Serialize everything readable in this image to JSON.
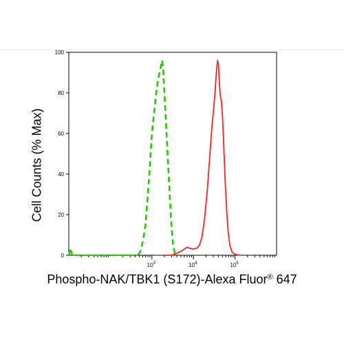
{
  "chart_data": {
    "type": "line",
    "ylabel": "Cell Counts (% Max)",
    "xlabel": {
      "main": "Phospho-NAK/TBK1 (S172)-Alexa Fluor",
      "superscript": "®",
      "suffix": " 647"
    },
    "x_scale": "log",
    "xlim": [
      10,
      1000000
    ],
    "ylim": [
      0,
      100
    ],
    "x_ticks": [
      {
        "base": "10",
        "exp": "3",
        "value": 1000
      },
      {
        "base": "10",
        "exp": "4",
        "value": 10000
      },
      {
        "base": "10",
        "exp": "5",
        "value": 100000
      }
    ],
    "y_ticks": [
      {
        "label": "0",
        "value": 0
      },
      {
        "label": "20",
        "value": 20
      },
      {
        "label": "40",
        "value": 40
      },
      {
        "label": "60",
        "value": 60
      },
      {
        "label": "80",
        "value": 80
      },
      {
        "label": "100",
        "value": 100
      }
    ],
    "series": [
      {
        "style": "dashed",
        "color": "#22cc00",
        "points": [
          [
            10,
            0
          ],
          [
            11,
            3.5
          ],
          [
            12,
            0
          ],
          [
            200,
            0
          ],
          [
            420,
            0
          ],
          [
            500,
            1
          ],
          [
            550,
            3
          ],
          [
            620,
            8
          ],
          [
            700,
            15
          ],
          [
            800,
            30
          ],
          [
            900,
            45
          ],
          [
            1000,
            60
          ],
          [
            1150,
            72
          ],
          [
            1300,
            82
          ],
          [
            1450,
            88
          ],
          [
            1600,
            92
          ],
          [
            1750,
            96
          ],
          [
            1850,
            93
          ],
          [
            2000,
            80
          ],
          [
            2200,
            64
          ],
          [
            2400,
            48
          ],
          [
            2650,
            32
          ],
          [
            2900,
            17
          ],
          [
            3200,
            6
          ],
          [
            3550,
            1
          ],
          [
            4000,
            0
          ]
        ]
      },
      {
        "style": "solid",
        "color": "#ff2222",
        "points": [
          [
            2000,
            0
          ],
          [
            3000,
            0
          ],
          [
            4000,
            1
          ],
          [
            5000,
            2
          ],
          [
            6000,
            3
          ],
          [
            7000,
            4
          ],
          [
            8000,
            3.5
          ],
          [
            10000,
            3
          ],
          [
            12000,
            3.5
          ],
          [
            14000,
            5
          ],
          [
            16000,
            9
          ],
          [
            18500,
            18
          ],
          [
            21500,
            32
          ],
          [
            24500,
            48
          ],
          [
            27500,
            62
          ],
          [
            30500,
            72
          ],
          [
            33000,
            80
          ],
          [
            35500,
            90
          ],
          [
            38000,
            96
          ],
          [
            40000,
            94
          ],
          [
            42000,
            85
          ],
          [
            44000,
            79
          ],
          [
            47000,
            76
          ],
          [
            50000,
            68
          ],
          [
            54000,
            52
          ],
          [
            58000,
            36
          ],
          [
            63000,
            22
          ],
          [
            68000,
            12
          ],
          [
            75000,
            5
          ],
          [
            85000,
            1.5
          ],
          [
            100000,
            0.5
          ],
          [
            130000,
            0
          ]
        ]
      }
    ]
  }
}
